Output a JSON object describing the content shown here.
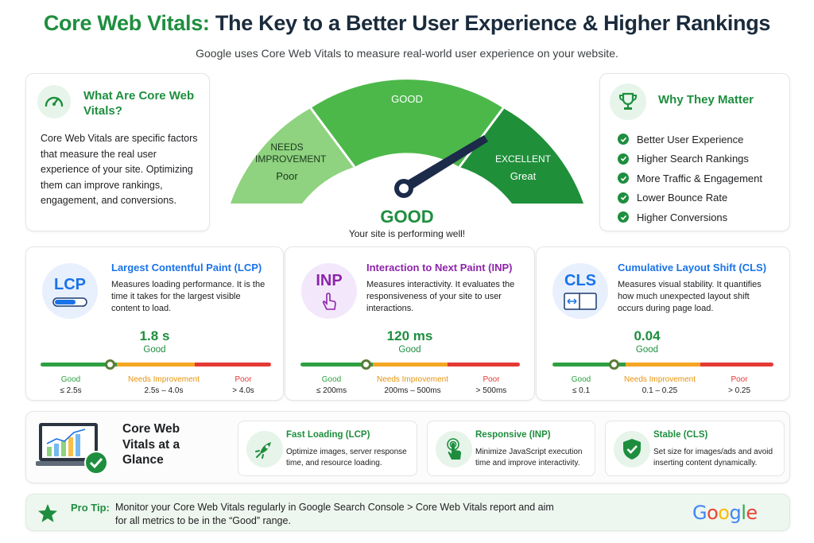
{
  "header": {
    "title_green": "Core Web Vitals:",
    "title_dark": "The Key to a Better User Experience & Higher Rankings",
    "subtitle": "Google uses Core Web Vitals to measure real-world user experience on your website."
  },
  "what": {
    "icon": "speedometer-icon",
    "title": "What Are Core Web Vitals?",
    "body": "Core Web Vitals are specific factors that measure the real user experience of your site. Optimizing them can improve rankings, engagement, and conversions."
  },
  "gauge": {
    "segments": [
      {
        "label": "NEEDS IMPROVEMENT",
        "sub": "Poor",
        "color": "#8fd27f"
      },
      {
        "label": "GOOD",
        "sub": "",
        "color": "#4cb84a"
      },
      {
        "label": "EXCELLENT",
        "sub": "Great",
        "color": "#1f8f3a"
      }
    ],
    "needle_value": 0.82,
    "status": "GOOD",
    "status_sub": "Your site is performing well!"
  },
  "why": {
    "icon": "trophy-icon",
    "title": "Why They Matter",
    "items": [
      "Better User Experience",
      "Higher Search Rankings",
      "More Traffic & Engagement",
      "Lower Bounce Rate",
      "Higher Conversions"
    ]
  },
  "metrics": {
    "lcp": {
      "abbr": "LCP",
      "name": "Largest Contentful Paint (LCP)",
      "desc": "Measures loading performance. It is the time it takes for the largest visible content to load.",
      "value": "1.8 s",
      "rating": "Good",
      "scale": [
        {
          "label": "Good",
          "range": "≤ 2.5s"
        },
        {
          "label": "Needs Improvement",
          "range": "2.5s – 4.0s"
        },
        {
          "label": "Poor",
          "range": "> 4.0s"
        }
      ],
      "position": 0.3,
      "accent": "#1a73e8"
    },
    "inp": {
      "abbr": "INP",
      "name": "Interaction to Next Paint (INP)",
      "desc": "Measures interactivity. It evaluates the responsiveness of your site to user interactions.",
      "value": "120 ms",
      "rating": "Good",
      "scale": [
        {
          "label": "Good",
          "range": "≤ 200ms"
        },
        {
          "label": "Needs Improvement",
          "range": "200ms – 500ms"
        },
        {
          "label": "Poor",
          "range": "> 500ms"
        }
      ],
      "position": 0.3,
      "accent": "#8e24aa"
    },
    "cls": {
      "abbr": "CLS",
      "name": "Cumulative Layout Shift (CLS)",
      "desc": "Measures visual stability. It quantifies how much unexpected layout shift occurs during page load.",
      "value": "0.04",
      "rating": "Good",
      "scale": [
        {
          "label": "Good",
          "range": "≤ 0.1"
        },
        {
          "label": "Needs Improvement",
          "range": "0.1 – 0.25"
        },
        {
          "label": "Poor",
          "range": "> 0.25"
        }
      ],
      "position": 0.28,
      "accent": "#1a73e8"
    }
  },
  "glance": {
    "title": "Core Web Vitals at a Glance",
    "items": [
      {
        "icon": "rocket-icon",
        "head": "Fast Loading (LCP)",
        "text": "Optimize images, server response time, and resource loading."
      },
      {
        "icon": "tap-icon",
        "head": "Responsive (INP)",
        "text": "Minimize JavaScript execution time and improve interactivity."
      },
      {
        "icon": "shield-check-icon",
        "head": "Stable (CLS)",
        "text": "Set size for images/ads and avoid inserting content dynamically."
      }
    ]
  },
  "protip": {
    "label": "Pro Tip:",
    "text": "Monitor your Core Web Vitals regularly in Google Search Console > Core Web Vitals report and aim for all metrics to be in the “Good” range.",
    "logo": "Google"
  },
  "colors": {
    "green": "#1e8e3e",
    "scale_good": "#2ea043",
    "scale_ni": "#f5a623",
    "scale_poor": "#e53935"
  }
}
